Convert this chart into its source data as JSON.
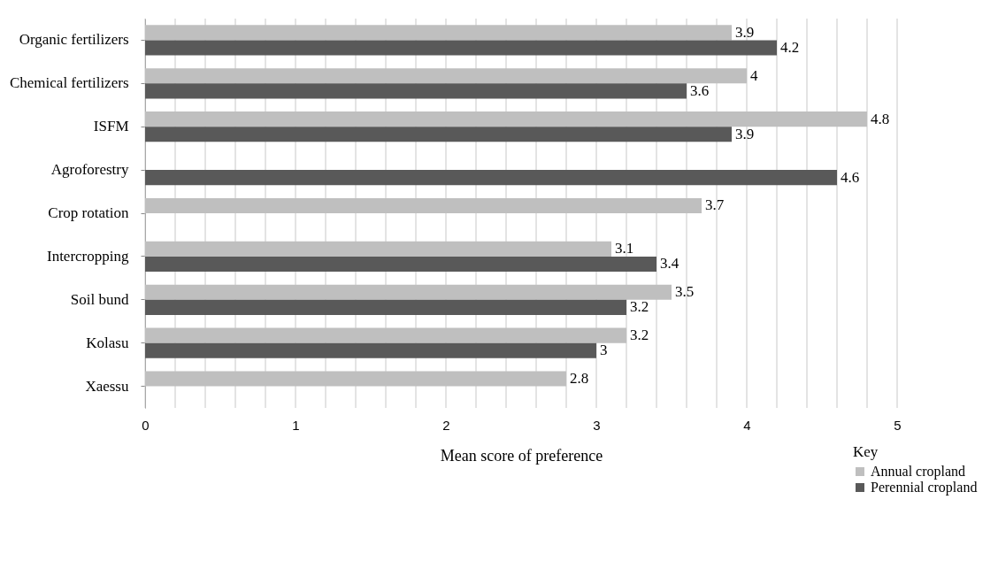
{
  "chart_data": {
    "type": "bar",
    "orientation": "horizontal",
    "xlabel": "Mean score of preference",
    "legend_title": "Key",
    "legend": "bottom right",
    "grid": "x",
    "data_labels": true,
    "categories": [
      "Organic fertilizers",
      "Chemical fertilizers",
      "ISFM",
      "Agroforestry",
      "Crop rotation",
      "Intercropping",
      "Soil bund",
      "Kolasu",
      "Xaessu"
    ],
    "series": [
      {
        "name": "Annual cropland",
        "color": "#bfbfbf",
        "values": [
          3.9,
          4,
          4.8,
          null,
          3.7,
          3.1,
          3.5,
          3.2,
          2.8
        ]
      },
      {
        "name": "Perennial cropland",
        "color": "#595959",
        "values": [
          4.2,
          3.6,
          3.9,
          4.6,
          null,
          3.4,
          3.2,
          3,
          null
        ]
      }
    ],
    "xlim": [
      0,
      5
    ],
    "xticks": [
      0,
      {
        "value": 0.2,
        "label": null
      },
      {
        "value": 0.4,
        "label": null
      },
      {
        "value": 0.6,
        "label": null
      },
      {
        "value": 0.8,
        "label": null
      },
      1,
      {
        "value": 1.2,
        "label": null
      },
      {
        "value": 1.4,
        "label": null
      },
      {
        "value": 1.6,
        "label": null
      },
      {
        "value": 1.8,
        "label": null
      },
      2,
      {
        "value": 2.2,
        "label": null
      },
      {
        "value": 2.4,
        "label": null
      },
      {
        "value": 2.6,
        "label": null
      },
      {
        "value": 2.8,
        "label": null
      },
      3,
      {
        "value": 3.2,
        "label": null
      },
      {
        "value": 3.4,
        "label": null
      },
      {
        "value": 3.6,
        "label": null
      },
      {
        "value": 3.8,
        "label": null
      },
      4,
      {
        "value": 4.2,
        "label": null
      },
      {
        "value": 4.4,
        "label": null
      },
      {
        "value": 4.6,
        "label": null
      },
      {
        "value": 4.8,
        "label": null
      },
      5
    ]
  }
}
